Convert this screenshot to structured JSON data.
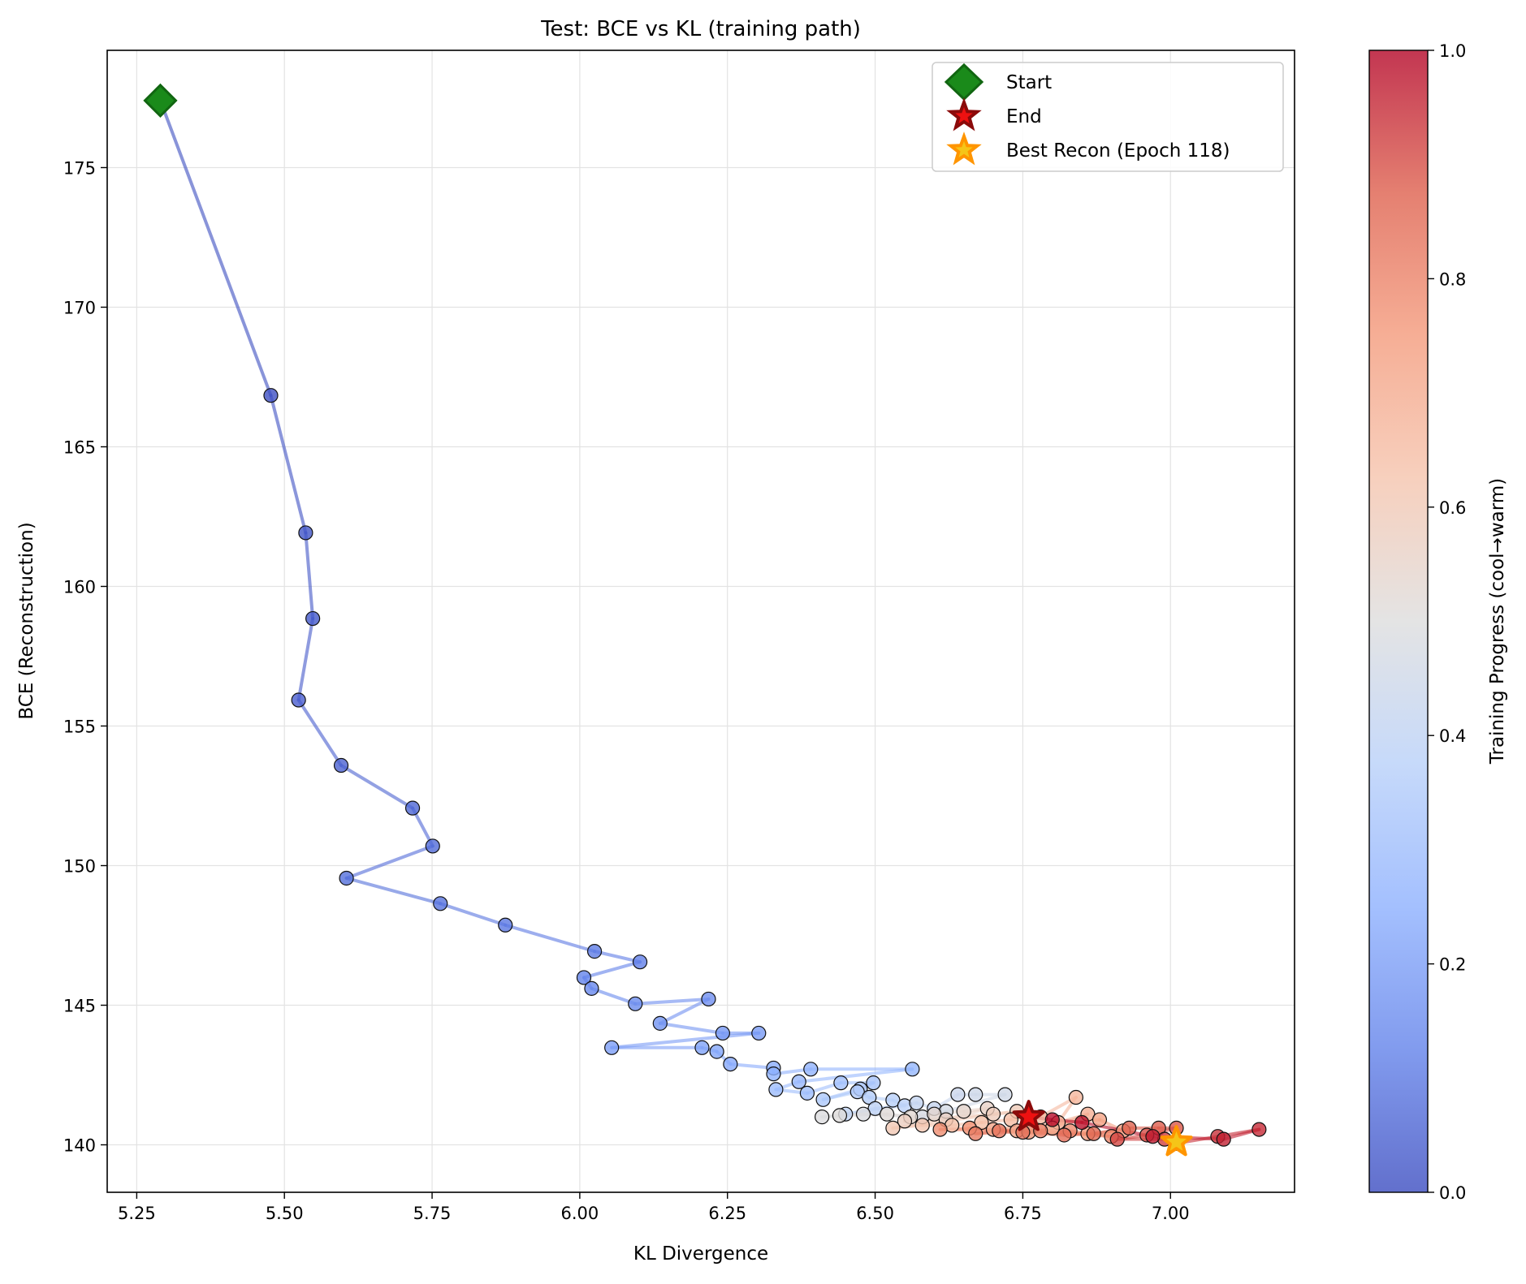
{
  "chart_data": {
    "type": "scatter",
    "title": "Test: BCE vs KL (training path)",
    "xlabel": "KL Divergence",
    "ylabel": "BCE (Reconstruction)",
    "xlim": [
      5.2,
      7.21
    ],
    "ylim": [
      138.3,
      179.2
    ],
    "xticks": [
      "5.25",
      "5.50",
      "5.75",
      "6.00",
      "6.25",
      "6.50",
      "6.75",
      "7.00"
    ],
    "yticks": [
      "140",
      "145",
      "150",
      "155",
      "160",
      "165",
      "170",
      "175"
    ],
    "grid": true,
    "legend_position": "top-right",
    "legend": [
      {
        "label": "Start",
        "marker": "diamond",
        "color": "#1a7f1a"
      },
      {
        "label": "End",
        "marker": "star",
        "color": "#aa1111"
      },
      {
        "label": "Best Recon (Epoch 118)",
        "marker": "star",
        "color": "#ff9900"
      }
    ],
    "colorbar": {
      "label": "Training Progress (cool→warm)",
      "colormap": "coolwarm",
      "range": [
        0,
        1
      ],
      "ticks": [
        "0.0",
        "0.2",
        "0.4",
        "0.6",
        "0.8",
        "1.0"
      ]
    },
    "colormap_colors": [
      "#3b4cc0",
      "#6282ea",
      "#8db0fe",
      "#b8d0f9",
      "#dddddd",
      "#f5c4ad",
      "#f49a7b",
      "#de604d",
      "#b40426"
    ],
    "start": {
      "x": 5.29,
      "y": 177.4
    },
    "end": {
      "x": 6.76,
      "y": 141.0
    },
    "best": {
      "x": 7.01,
      "y": 140.1
    },
    "points": [
      [
        5.29,
        177.4
      ],
      [
        5.477,
        166.84
      ],
      [
        5.536,
        161.92
      ],
      [
        5.548,
        158.85
      ],
      [
        5.524,
        155.93
      ],
      [
        5.596,
        153.59
      ],
      [
        5.717,
        152.06
      ],
      [
        5.751,
        150.7
      ],
      [
        5.605,
        149.55
      ],
      [
        5.764,
        148.64
      ],
      [
        5.874,
        147.87
      ],
      [
        6.025,
        146.93
      ],
      [
        6.102,
        146.55
      ],
      [
        6.007,
        145.99
      ],
      [
        6.02,
        145.6
      ],
      [
        6.094,
        145.05
      ],
      [
        6.218,
        145.22
      ],
      [
        6.136,
        144.35
      ],
      [
        6.242,
        144.0
      ],
      [
        6.303,
        144.0
      ],
      [
        6.054,
        143.48
      ],
      [
        6.207,
        143.48
      ],
      [
        6.232,
        143.34
      ],
      [
        6.255,
        142.89
      ],
      [
        6.328,
        142.75
      ],
      [
        6.328,
        142.54
      ],
      [
        6.391,
        142.71
      ],
      [
        6.563,
        142.71
      ],
      [
        6.371,
        142.26
      ],
      [
        6.332,
        141.98
      ],
      [
        6.385,
        141.85
      ],
      [
        6.442,
        142.22
      ],
      [
        6.497,
        142.22
      ],
      [
        6.475,
        142.0
      ],
      [
        6.412,
        141.62
      ],
      [
        6.47,
        141.9
      ],
      [
        6.49,
        141.7
      ],
      [
        6.53,
        141.6
      ],
      [
        6.55,
        141.4
      ],
      [
        6.5,
        141.3
      ],
      [
        6.45,
        141.1
      ],
      [
        6.57,
        141.5
      ],
      [
        6.6,
        141.3
      ],
      [
        6.64,
        141.8
      ],
      [
        6.67,
        141.8
      ],
      [
        6.72,
        141.8
      ],
      [
        6.62,
        141.2
      ],
      [
        6.58,
        141.0
      ],
      [
        6.48,
        141.1
      ],
      [
        6.41,
        141.0
      ],
      [
        6.44,
        141.05
      ],
      [
        6.52,
        141.1
      ],
      [
        6.56,
        141.0
      ],
      [
        6.6,
        141.1
      ],
      [
        6.65,
        141.2
      ],
      [
        6.69,
        141.3
      ],
      [
        6.62,
        140.9
      ],
      [
        6.55,
        140.85
      ],
      [
        6.7,
        141.1
      ],
      [
        6.74,
        141.2
      ],
      [
        6.53,
        140.6
      ],
      [
        6.58,
        140.7
      ],
      [
        6.63,
        140.7
      ],
      [
        6.68,
        140.8
      ],
      [
        6.73,
        140.9
      ],
      [
        6.78,
        141.0
      ],
      [
        6.84,
        141.7
      ],
      [
        6.81,
        140.8
      ],
      [
        6.86,
        141.1
      ],
      [
        6.8,
        140.6
      ],
      [
        6.74,
        140.5
      ],
      [
        6.7,
        140.55
      ],
      [
        6.88,
        140.9
      ],
      [
        6.92,
        140.5
      ],
      [
        6.86,
        140.4
      ],
      [
        6.76,
        140.45
      ],
      [
        6.66,
        140.6
      ],
      [
        6.61,
        140.55
      ],
      [
        6.83,
        140.5
      ],
      [
        6.9,
        140.3
      ],
      [
        6.78,
        140.5
      ],
      [
        6.67,
        140.4
      ],
      [
        6.71,
        140.5
      ],
      [
        6.75,
        140.45
      ],
      [
        6.82,
        140.35
      ],
      [
        6.87,
        140.4
      ],
      [
        6.93,
        140.6
      ],
      [
        6.98,
        140.6
      ],
      [
        7.01,
        140.6
      ],
      [
        6.96,
        140.35
      ],
      [
        6.91,
        140.2
      ],
      [
        6.99,
        140.2
      ],
      [
        7.01,
        140.05
      ],
      [
        7.08,
        140.3
      ],
      [
        7.15,
        140.55
      ],
      [
        7.09,
        140.2
      ],
      [
        6.97,
        140.3
      ],
      [
        6.85,
        140.8
      ],
      [
        6.8,
        140.9
      ],
      [
        6.76,
        141.0
      ]
    ]
  }
}
